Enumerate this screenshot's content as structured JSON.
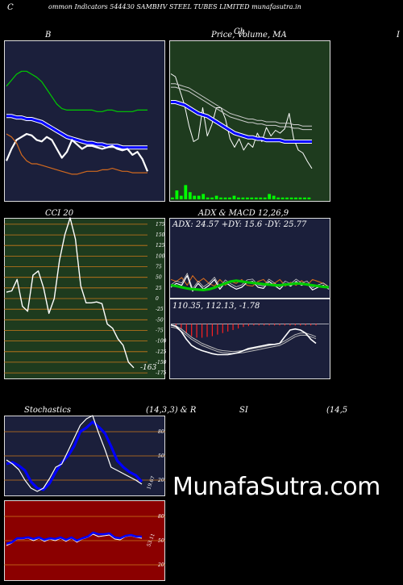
{
  "header": {
    "c_label": "C",
    "title": "ommon  Indicators 544430  SAMBHV STEEL TUBES LIMITED munafasutra.in"
  },
  "labels": {
    "b": "B",
    "price": "Price,  Volume,  MA",
    "price_overlap": "Ch",
    "right_edge": "I",
    "cci": "CCI 20",
    "adx_macd": "ADX  & MACD 12,26,9",
    "adx_values": "ADX: 24.57  +DY: 15.6  -DY: 25.77",
    "macd_values": "110.35,  112.13,  -1.78",
    "stoch_a": "Stochastics",
    "stoch_b": "(14,3,3) & R",
    "si_a": "SI",
    "si_b": "(14,5",
    "watermark": "MunafaSutra.com"
  },
  "colors": {
    "bg": "#000000",
    "panel_navy": "#1b1f3b",
    "panel_green": "#1e3b1e",
    "panel_red": "#8b0000",
    "blue": "#0000ff",
    "green": "#00cc00",
    "orange": "#d2691e",
    "white": "#ffffff",
    "grid_orange": "#cc7a1a"
  },
  "chart_data": [
    {
      "id": "bollinger",
      "type": "line",
      "title": "B",
      "ylim": [
        0,
        100
      ],
      "series": [
        {
          "color": "green",
          "values": [
            72,
            76,
            80,
            82,
            82,
            80,
            78,
            75,
            70,
            65,
            60,
            57,
            56,
            56,
            56,
            56,
            56,
            56,
            55,
            55,
            56,
            56,
            55,
            55,
            55,
            55,
            56,
            56,
            56
          ]
        },
        {
          "color": "blue",
          "values": [
            52,
            52,
            51,
            51,
            50,
            50,
            49,
            48,
            46,
            44,
            42,
            40,
            38,
            37,
            36,
            35,
            34,
            34,
            33,
            33,
            32,
            32,
            32,
            31,
            31,
            31,
            31,
            31,
            31
          ]
        },
        {
          "color": "white",
          "values": [
            22,
            30,
            36,
            38,
            40,
            39,
            36,
            35,
            38,
            36,
            30,
            24,
            28,
            36,
            33,
            30,
            32,
            32,
            31,
            30,
            31,
            32,
            30,
            29,
            30,
            26,
            28,
            23,
            15
          ]
        },
        {
          "color": "orange",
          "values": [
            40,
            38,
            34,
            26,
            22,
            20,
            20,
            19,
            18,
            17,
            16,
            15,
            14,
            13,
            13,
            14,
            15,
            15,
            15,
            16,
            16,
            17,
            16,
            15,
            15,
            14,
            14,
            14,
            14
          ]
        }
      ]
    },
    {
      "id": "price",
      "type": "line",
      "title": "Price,  Volume,  MA",
      "ylim": [
        0,
        100
      ],
      "series": [
        {
          "color": "white",
          "values": [
            82,
            80,
            70,
            60,
            45,
            34,
            36,
            58,
            38,
            46,
            58,
            58,
            50,
            36,
            30,
            36,
            28,
            33,
            30,
            40,
            34,
            44,
            38,
            42,
            40,
            43,
            54,
            36,
            28,
            26,
            20,
            15
          ]
        },
        {
          "color": "blue",
          "values": [
            62,
            62,
            61,
            60,
            58,
            56,
            54,
            53,
            52,
            50,
            48,
            46,
            44,
            42,
            40,
            39,
            38,
            37,
            37,
            36,
            36,
            35,
            35,
            35,
            35,
            34,
            34,
            34,
            34,
            34,
            34,
            34
          ]
        },
        {
          "color": "bands",
          "values": [
            75,
            75,
            74,
            73,
            72,
            70,
            68,
            66,
            64,
            62,
            60,
            58,
            56,
            54,
            53,
            52,
            51,
            50,
            50,
            49,
            49,
            48,
            48,
            48,
            47,
            47,
            47,
            46,
            46,
            45,
            45,
            45
          ]
        },
        {
          "color": "volume",
          "values": [
            1,
            5,
            2,
            8,
            4,
            2,
            2,
            3,
            1,
            1,
            2,
            1,
            1,
            1,
            2,
            1,
            1,
            1,
            1,
            1,
            1,
            1,
            3,
            2,
            1,
            1,
            1,
            1,
            1,
            1,
            1,
            1
          ]
        }
      ]
    },
    {
      "id": "cci",
      "type": "line",
      "title": "CCI 20",
      "yticks": [
        175,
        150,
        125,
        100,
        75,
        50,
        25,
        0,
        -25,
        -50,
        -75,
        -100,
        -125,
        -150,
        -175
      ],
      "ylim": [
        -190,
        190
      ],
      "value_label": "-163",
      "series": [
        {
          "color": "white",
          "values": [
            15,
            18,
            45,
            -18,
            -30,
            55,
            65,
            25,
            -35,
            0,
            90,
            150,
            190,
            140,
            30,
            -10,
            -10,
            -8,
            -12,
            -60,
            -70,
            -95,
            -110,
            -150,
            -163
          ]
        }
      ]
    },
    {
      "id": "adx",
      "type": "line",
      "title": "ADX  & MACD 12,26,9",
      "ylim": [
        0,
        100
      ],
      "series": [
        {
          "color": "green",
          "values": [
            30,
            28,
            25,
            22,
            20,
            19,
            18,
            20,
            24,
            30,
            35,
            40,
            42,
            40,
            38,
            36,
            35,
            33,
            32,
            30,
            30,
            32,
            33,
            35,
            34,
            32,
            30,
            28,
            26,
            25
          ]
        },
        {
          "color": "white",
          "values": [
            25,
            35,
            30,
            55,
            15,
            35,
            20,
            30,
            45,
            20,
            38,
            28,
            20,
            25,
            38,
            40,
            25,
            22,
            40,
            30,
            20,
            35,
            28,
            40,
            30,
            35,
            18,
            25,
            30,
            20
          ]
        },
        {
          "color": "orange",
          "values": [
            45,
            40,
            50,
            30,
            55,
            38,
            48,
            35,
            28,
            45,
            30,
            40,
            35,
            45,
            30,
            28,
            40,
            45,
            30,
            35,
            45,
            28,
            38,
            30,
            42,
            30,
            45,
            40,
            35,
            26
          ]
        }
      ]
    },
    {
      "id": "macd",
      "type": "line",
      "title": "110.35,  112.13,  -1.78",
      "ylim": [
        -100,
        10
      ],
      "series": [
        {
          "color": "white",
          "values": [
            -2,
            -5,
            -15,
            -30,
            -42,
            -48,
            -52,
            -55,
            -58,
            -60,
            -60,
            -60,
            -58,
            -56,
            -52,
            -48,
            -46,
            -44,
            -42,
            -40,
            -40,
            -38,
            -25,
            -12,
            -10,
            -12,
            -18,
            -30,
            -38
          ]
        },
        {
          "color": "grey",
          "values": [
            -2,
            -4,
            -10,
            -18,
            -26,
            -32,
            -38,
            -42,
            -46,
            -50,
            -52,
            -53,
            -54,
            -53,
            -52,
            -50,
            -48,
            -46,
            -44,
            -42,
            -40,
            -38,
            -33,
            -27,
            -21,
            -18,
            -18,
            -21,
            -25
          ]
        },
        {
          "color": "red",
          "values": [
            0,
            -2,
            -6,
            -12,
            -16,
            -18,
            -18,
            -17,
            -16,
            -14,
            -12,
            -10,
            -8,
            -6,
            -4,
            -3,
            -2,
            -2,
            -2,
            -2,
            -2,
            -2,
            -2,
            -2,
            -2,
            -2,
            -2,
            -2,
            -2
          ]
        }
      ]
    },
    {
      "id": "stochastics",
      "type": "line",
      "title": "Stochastics",
      "yticks": [
        80,
        50,
        20
      ],
      "ylim": [
        0,
        100
      ],
      "value_label": "19.67",
      "series": [
        {
          "color": "blue",
          "values": [
            40,
            42,
            38,
            32,
            18,
            10,
            8,
            16,
            30,
            42,
            50,
            62,
            80,
            85,
            92,
            86,
            78,
            62,
            44,
            36,
            30,
            26,
            18
          ]
        },
        {
          "color": "white",
          "values": [
            45,
            40,
            33,
            20,
            10,
            6,
            10,
            22,
            36,
            40,
            56,
            72,
            88,
            96,
            100,
            78,
            58,
            36,
            32,
            28,
            24,
            20,
            15
          ]
        }
      ]
    },
    {
      "id": "rsi",
      "type": "line",
      "title": "SI",
      "yticks": [
        80,
        50,
        20
      ],
      "ylim": [
        0,
        100
      ],
      "value_label": "53.11",
      "series": [
        {
          "color": "blue",
          "values": [
            46,
            48,
            53,
            53,
            54,
            52,
            54,
            51,
            53,
            52,
            54,
            51,
            54,
            50,
            53,
            55,
            60,
            58,
            58,
            59,
            54,
            53,
            56,
            57,
            55,
            55
          ]
        },
        {
          "color": "white",
          "values": [
            44,
            47,
            52,
            52,
            53,
            50,
            53,
            49,
            52,
            50,
            53,
            49,
            53,
            48,
            52,
            54,
            58,
            55,
            56,
            57,
            52,
            51,
            55,
            56,
            54,
            53
          ]
        }
      ]
    }
  ]
}
